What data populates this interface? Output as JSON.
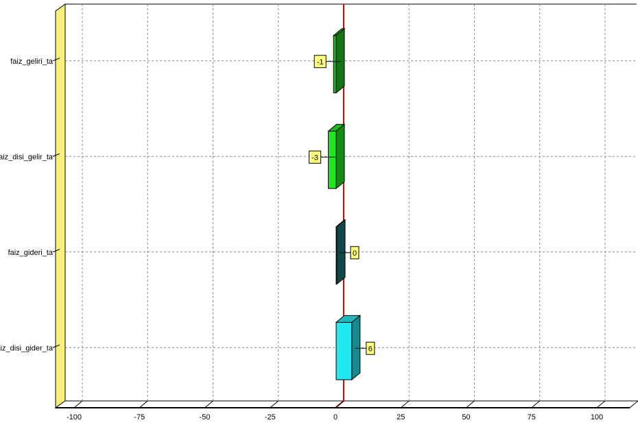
{
  "chart_data": {
    "type": "bar",
    "orientation": "horizontal",
    "style": "3d",
    "categories": [
      "faiz_geliri_ta",
      "faiz_disi_gelir_ta",
      "faiz_gideri_ta",
      "faiz_disi_gider_ta"
    ],
    "values": [
      -1,
      -3,
      0,
      6
    ],
    "data_labels": [
      "-1",
      "-3",
      "0",
      "6"
    ],
    "bar_colors": [
      "#22c022",
      "#22e622",
      "#1a7878",
      "#22e8ef"
    ],
    "x_ticks": [
      "-100",
      "-75",
      "-50",
      "-25",
      "0",
      "25",
      "50",
      "75",
      "100"
    ],
    "xlim": [
      -100,
      100
    ],
    "grid": true,
    "zero_line_color": "#e00000",
    "wall_color": "#f8f07a"
  }
}
